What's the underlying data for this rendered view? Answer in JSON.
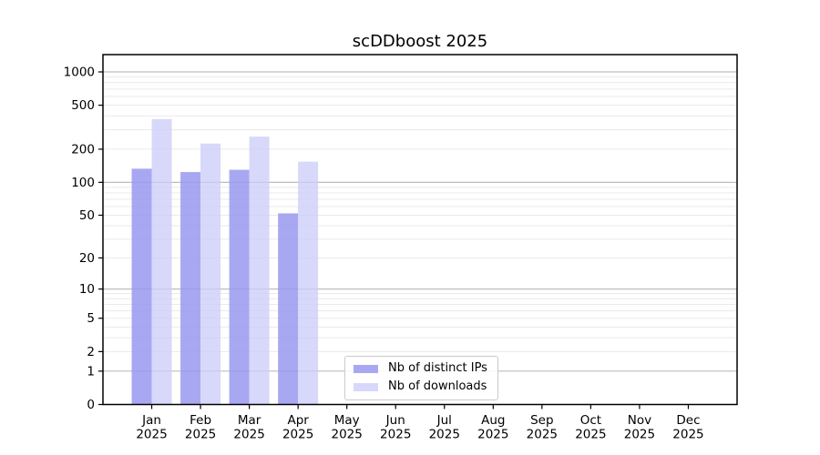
{
  "chart_data": {
    "type": "bar",
    "title": "scDDboost 2025",
    "categories": [
      "Jan",
      "Feb",
      "Mar",
      "Apr",
      "May",
      "Jun",
      "Jul",
      "Aug",
      "Sep",
      "Oct",
      "Nov",
      "Dec"
    ],
    "category_year": "2025",
    "series": [
      {
        "name": "Nb of distinct IPs",
        "color": "#9999f0",
        "fill_opacity": 0.85,
        "values": [
          133,
          124,
          130,
          52,
          0,
          0,
          0,
          0,
          0,
          0,
          0,
          0
        ]
      },
      {
        "name": "Nb of downloads",
        "color": "#ccccf8",
        "fill_opacity": 0.76,
        "values": [
          374,
          225,
          260,
          154,
          0,
          0,
          0,
          0,
          0,
          0,
          0,
          0
        ]
      }
    ],
    "y_axis": {
      "scale": "log10(1+x)",
      "ticks": [
        0,
        1,
        2,
        5,
        10,
        20,
        50,
        100,
        200,
        500,
        1000
      ]
    },
    "grid": {
      "major_lines_at": [
        1,
        10,
        100,
        1000
      ],
      "major_color": "#bdbdbd",
      "minor_color": "#eaeaea"
    },
    "axis_color": "#000000",
    "legend_position": "lower-center-inside"
  }
}
